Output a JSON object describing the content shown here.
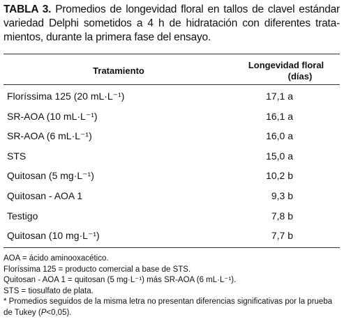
{
  "caption": {
    "label": "TABLA 3.",
    "lines": [
      "Promedios de longevidad floral en tallos de clavel estándar",
      "variedad Delphi sometidos a 4 h de hidratación con diferentes trata-",
      "mientos, durante la primera fase del ensayo."
    ]
  },
  "table": {
    "headers": [
      "Tratamiento",
      "Longevidad floral",
      "(días)"
    ],
    "rows": [
      [
        "Floríssima 125 (20 mL·L⁻¹)",
        "17,1 a"
      ],
      [
        "SR-AOA (10 mL·L⁻¹)",
        "16,1 a"
      ],
      [
        "SR-AOA (6 mL·L⁻¹)",
        "16,0 a"
      ],
      [
        "STS",
        "15,0 a"
      ],
      [
        "Quitosan (5 mg·L⁻¹)",
        "10,2 b"
      ],
      [
        "Quitosan - AOA 1",
        "9,3 b"
      ],
      [
        "Testigo",
        "7,8 b"
      ],
      [
        "Quitosan (10 mg·L⁻¹)",
        "7,7 b"
      ]
    ]
  },
  "notes": [
    "AOA = ácido aminooxacético.",
    "Floríssima 125 = producto comercial a base de STS.",
    "Quitosan - AOA 1 = quitosan (5 mg·L⁻¹) más SR-AOA (6 mL·L⁻¹).",
    "STS = tiosulfato de plata."
  ],
  "footnote": {
    "text": "* Promedios seguidos de la misma letra no presentan diferencias significativas por la prueba de Tukey (",
    "italic": "P",
    "end": "<0,05)."
  }
}
